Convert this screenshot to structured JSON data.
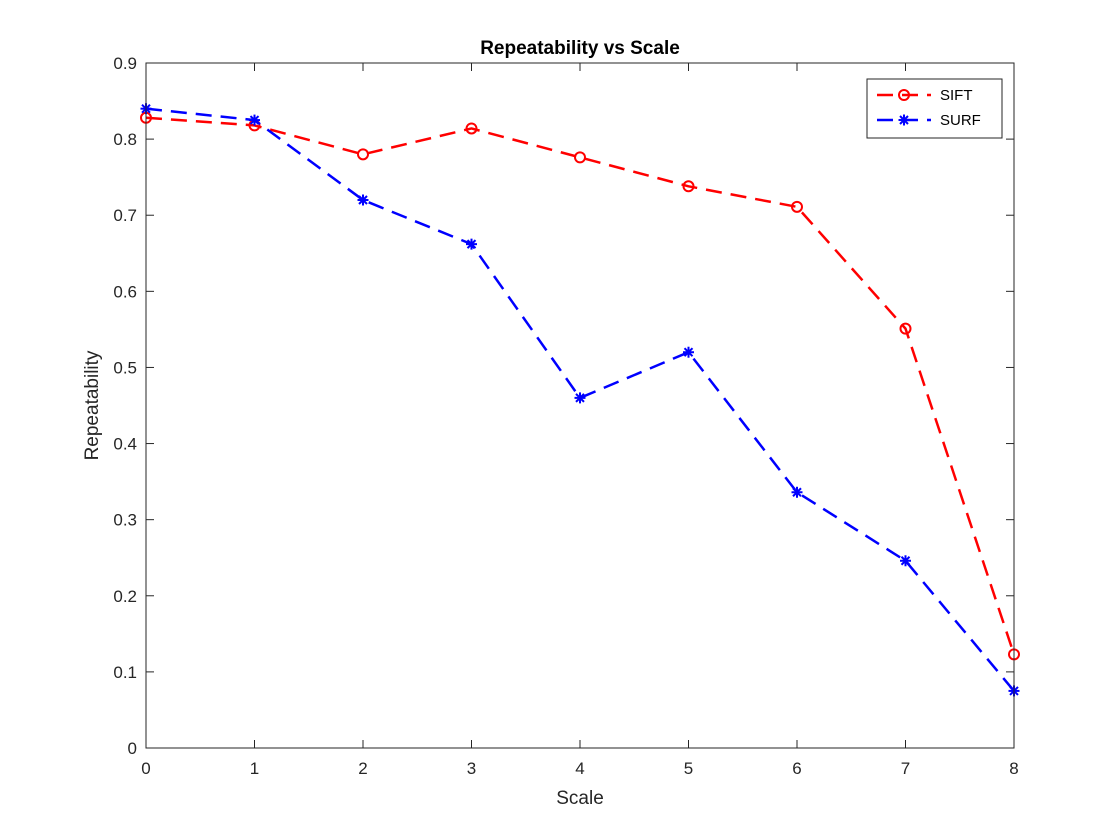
{
  "chart_data": {
    "type": "line",
    "title": "Repeatability vs Scale",
    "xlabel": "Scale",
    "ylabel": "Repeatability",
    "xlim": [
      0,
      8
    ],
    "ylim": [
      0,
      0.9
    ],
    "xticks": [
      "0",
      "1",
      "2",
      "3",
      "4",
      "5",
      "6",
      "7",
      "8"
    ],
    "yticks": [
      "0",
      "0.1",
      "0.2",
      "0.3",
      "0.4",
      "0.5",
      "0.6",
      "0.7",
      "0.8",
      "0.9"
    ],
    "grid": false,
    "legend_position": "top-right",
    "x": [
      0,
      1,
      2,
      3,
      4,
      5,
      6,
      7,
      8
    ],
    "series": [
      {
        "name": "SIFT",
        "values": [
          0.828,
          0.818,
          0.78,
          0.814,
          0.776,
          0.738,
          0.711,
          0.551,
          0.123
        ],
        "color": "#ff0000",
        "marker": "circle",
        "line_style": "dashed"
      },
      {
        "name": "SURF",
        "values": [
          0.84,
          0.825,
          0.72,
          0.662,
          0.46,
          0.52,
          0.336,
          0.246,
          0.075
        ],
        "color": "#0000ff",
        "marker": "asterisk",
        "line_style": "dashed"
      }
    ]
  }
}
